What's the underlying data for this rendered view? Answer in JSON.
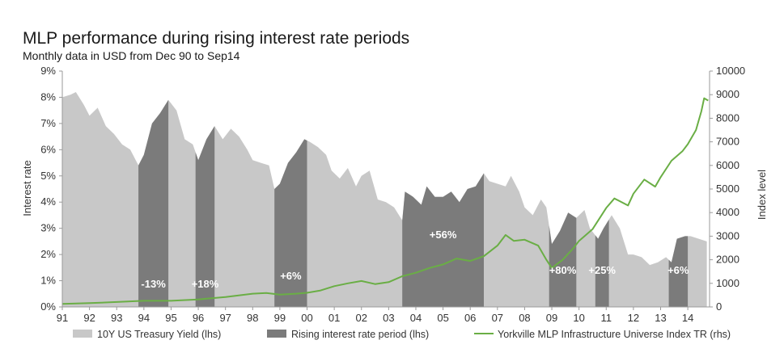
{
  "chart_data": {
    "type": "area",
    "title": "MLP performance during rising interest rate periods",
    "subtitle": "Monthly data in USD from Dec 90 to Sep14",
    "ylabel_left": "Interest rate",
    "ylabel_right": "Index level",
    "ylim_left": [
      0,
      9
    ],
    "ylim_right": [
      0,
      10000
    ],
    "y_ticks_left": [
      "0%",
      "1%",
      "2%",
      "3%",
      "4%",
      "5%",
      "6%",
      "7%",
      "8%",
      "9%"
    ],
    "y_ticks_right": [
      "0",
      "1000",
      "2000",
      "3000",
      "4000",
      "5000",
      "6000",
      "7000",
      "8000",
      "9000",
      "10000"
    ],
    "x_ticks": [
      "91",
      "92",
      "93",
      "94",
      "95",
      "96",
      "97",
      "98",
      "99",
      "00",
      "01",
      "02",
      "03",
      "04",
      "05",
      "06",
      "07",
      "08",
      "09",
      "10",
      "11",
      "12",
      "13",
      "14"
    ],
    "grid": false,
    "legend_position": "bottom",
    "series": [
      {
        "name": "10Y US Treasury Yield (lhs)",
        "axis": "left",
        "color": "#c8c8c8",
        "points": [
          [
            1991.0,
            8.0
          ],
          [
            1991.3,
            8.1
          ],
          [
            1991.5,
            8.2
          ],
          [
            1991.8,
            7.7
          ],
          [
            1992.0,
            7.3
          ],
          [
            1992.3,
            7.6
          ],
          [
            1992.6,
            6.9
          ],
          [
            1992.9,
            6.6
          ],
          [
            1993.2,
            6.2
          ],
          [
            1993.5,
            6.0
          ],
          [
            1993.8,
            5.4
          ],
          [
            1994.0,
            5.8
          ],
          [
            1994.3,
            7.0
          ],
          [
            1994.6,
            7.4
          ],
          [
            1994.9,
            7.9
          ],
          [
            1995.2,
            7.5
          ],
          [
            1995.5,
            6.4
          ],
          [
            1995.8,
            6.2
          ],
          [
            1996.0,
            5.6
          ],
          [
            1996.3,
            6.4
          ],
          [
            1996.6,
            6.9
          ],
          [
            1996.9,
            6.4
          ],
          [
            1997.2,
            6.8
          ],
          [
            1997.5,
            6.5
          ],
          [
            1997.8,
            6.0
          ],
          [
            1998.0,
            5.6
          ],
          [
            1998.3,
            5.5
          ],
          [
            1998.6,
            5.4
          ],
          [
            1998.8,
            4.5
          ],
          [
            1999.0,
            4.7
          ],
          [
            1999.3,
            5.5
          ],
          [
            1999.6,
            5.9
          ],
          [
            1999.9,
            6.4
          ],
          [
            2000.1,
            6.3
          ],
          [
            2000.4,
            6.1
          ],
          [
            2000.7,
            5.8
          ],
          [
            2000.9,
            5.2
          ],
          [
            2001.2,
            4.9
          ],
          [
            2001.5,
            5.3
          ],
          [
            2001.8,
            4.6
          ],
          [
            2002.0,
            5.0
          ],
          [
            2002.3,
            5.2
          ],
          [
            2002.6,
            4.1
          ],
          [
            2002.9,
            4.0
          ],
          [
            2003.2,
            3.8
          ],
          [
            2003.5,
            3.3
          ],
          [
            2003.6,
            4.4
          ],
          [
            2003.9,
            4.2
          ],
          [
            2004.2,
            3.9
          ],
          [
            2004.4,
            4.6
          ],
          [
            2004.7,
            4.2
          ],
          [
            2005.0,
            4.2
          ],
          [
            2005.3,
            4.4
          ],
          [
            2005.6,
            4.0
          ],
          [
            2005.9,
            4.5
          ],
          [
            2006.2,
            4.6
          ],
          [
            2006.5,
            5.1
          ],
          [
            2006.7,
            4.8
          ],
          [
            2007.0,
            4.7
          ],
          [
            2007.3,
            4.6
          ],
          [
            2007.5,
            5.0
          ],
          [
            2007.8,
            4.4
          ],
          [
            2008.0,
            3.8
          ],
          [
            2008.3,
            3.5
          ],
          [
            2008.6,
            4.1
          ],
          [
            2008.8,
            3.8
          ],
          [
            2009.0,
            2.4
          ],
          [
            2009.3,
            2.9
          ],
          [
            2009.6,
            3.6
          ],
          [
            2009.9,
            3.4
          ],
          [
            2010.2,
            3.7
          ],
          [
            2010.4,
            3.0
          ],
          [
            2010.7,
            2.6
          ],
          [
            2010.9,
            3.0
          ],
          [
            2011.2,
            3.5
          ],
          [
            2011.5,
            3.0
          ],
          [
            2011.8,
            2.0
          ],
          [
            2012.0,
            2.0
          ],
          [
            2012.3,
            1.9
          ],
          [
            2012.6,
            1.6
          ],
          [
            2012.9,
            1.7
          ],
          [
            2013.2,
            1.9
          ],
          [
            2013.4,
            1.7
          ],
          [
            2013.6,
            2.6
          ],
          [
            2013.9,
            2.7
          ],
          [
            2014.1,
            2.7
          ],
          [
            2014.4,
            2.6
          ],
          [
            2014.7,
            2.5
          ]
        ]
      },
      {
        "name": "Rising interest rate period (lhs)",
        "axis": "left",
        "color": "#7b7b7b",
        "periods": [
          {
            "start": 1993.8,
            "end": 1994.9,
            "label": "-13%"
          },
          {
            "start": 1995.9,
            "end": 1996.6,
            "label": "+18%"
          },
          {
            "start": 1998.8,
            "end": 2000.0,
            "label": "+6%"
          },
          {
            "start": 2003.5,
            "end": 2006.5,
            "label": "+56%"
          },
          {
            "start": 2008.9,
            "end": 2009.9,
            "label": "+80%"
          },
          {
            "start": 2010.6,
            "end": 2011.1,
            "label": "+25%"
          },
          {
            "start": 2013.3,
            "end": 2014.0,
            "label": "+6%"
          }
        ]
      },
      {
        "name": "Yorkville MLP Infrastructure Universe Index TR (rhs)",
        "axis": "right",
        "color": "#6aae45",
        "points": [
          [
            1991.0,
            130
          ],
          [
            1992.0,
            160
          ],
          [
            1993.0,
            210
          ],
          [
            1994.0,
            260
          ],
          [
            1995.0,
            260
          ],
          [
            1996.0,
            320
          ],
          [
            1997.0,
            420
          ],
          [
            1998.0,
            560
          ],
          [
            1998.5,
            590
          ],
          [
            1999.0,
            520
          ],
          [
            1999.6,
            560
          ],
          [
            2000.0,
            600
          ],
          [
            2000.5,
            700
          ],
          [
            2001.0,
            880
          ],
          [
            2001.5,
            1000
          ],
          [
            2002.0,
            1100
          ],
          [
            2002.5,
            970
          ],
          [
            2003.0,
            1050
          ],
          [
            2003.5,
            1300
          ],
          [
            2004.0,
            1450
          ],
          [
            2004.5,
            1650
          ],
          [
            2005.0,
            1800
          ],
          [
            2005.5,
            2050
          ],
          [
            2006.0,
            1950
          ],
          [
            2006.5,
            2150
          ],
          [
            2007.0,
            2600
          ],
          [
            2007.3,
            3050
          ],
          [
            2007.6,
            2800
          ],
          [
            2008.0,
            2850
          ],
          [
            2008.5,
            2600
          ],
          [
            2008.8,
            2000
          ],
          [
            2009.0,
            1650
          ],
          [
            2009.4,
            2000
          ],
          [
            2009.8,
            2500
          ],
          [
            2010.0,
            2800
          ],
          [
            2010.5,
            3300
          ],
          [
            2011.0,
            4200
          ],
          [
            2011.3,
            4600
          ],
          [
            2011.8,
            4300
          ],
          [
            2012.0,
            4800
          ],
          [
            2012.4,
            5400
          ],
          [
            2012.8,
            5100
          ],
          [
            2013.0,
            5500
          ],
          [
            2013.4,
            6200
          ],
          [
            2013.8,
            6600
          ],
          [
            2014.0,
            6900
          ],
          [
            2014.3,
            7500
          ],
          [
            2014.5,
            8300
          ],
          [
            2014.6,
            8850
          ],
          [
            2014.75,
            8750
          ]
        ]
      }
    ]
  }
}
